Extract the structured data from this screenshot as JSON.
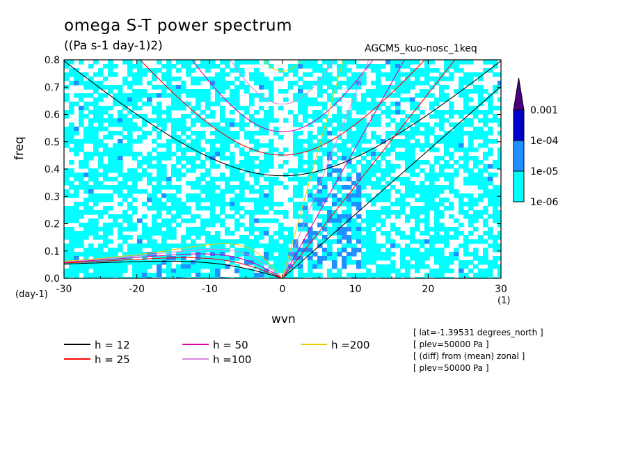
{
  "chart_data": {
    "type": "heatmap",
    "title": "omega S-T power spectrum",
    "units": "((Pa s-1 day-1)2)",
    "experiment": "AGCM5_kuo-nosc_1keq",
    "xlabel": "wvn",
    "xunit": "(1)",
    "ylabel": "freq",
    "yunit": "(day-1)",
    "xlim": [
      -30,
      30
    ],
    "ylim": [
      0,
      0.8
    ],
    "xticks": [
      -30,
      -20,
      -10,
      0,
      10,
      20,
      30
    ],
    "xtick_labels": [
      "-30",
      "-20",
      "-10",
      "0",
      "10",
      "20",
      "30"
    ],
    "yticks": [
      0.0,
      0.1,
      0.2,
      0.3,
      0.4,
      0.5,
      0.6,
      0.7,
      0.8
    ],
    "ytick_labels": [
      "0.0",
      "0.1",
      "0.2",
      "0.3",
      "0.4",
      "0.5",
      "0.6",
      "0.7",
      "0.8"
    ],
    "colorbar": {
      "levels": [
        "1e-06",
        "1e-05",
        "1e-04",
        "0.001"
      ],
      "colors": [
        "#00ffff",
        "#1e90ff",
        "#0000cd",
        "#4b0082"
      ]
    },
    "dispersion_curves": [
      {
        "label": "h = 12",
        "h": 12,
        "color": "#000000"
      },
      {
        "label": "h = 25",
        "h": 25,
        "color": "#ff0000"
      },
      {
        "label": "h = 50",
        "h": 50,
        "color": "#dd00aa"
      },
      {
        "label": "h =100",
        "h": 100,
        "color": "#dd88dd"
      },
      {
        "label": "h =200",
        "h": 200,
        "color": "#e6cc00"
      }
    ],
    "info": [
      "[ lat=-1.39531 degrees_north ]",
      "[ plev=50000 Pa ]",
      "[ (diff) from (mean) zonal ]",
      "[ plev=50000 Pa ]"
    ]
  }
}
